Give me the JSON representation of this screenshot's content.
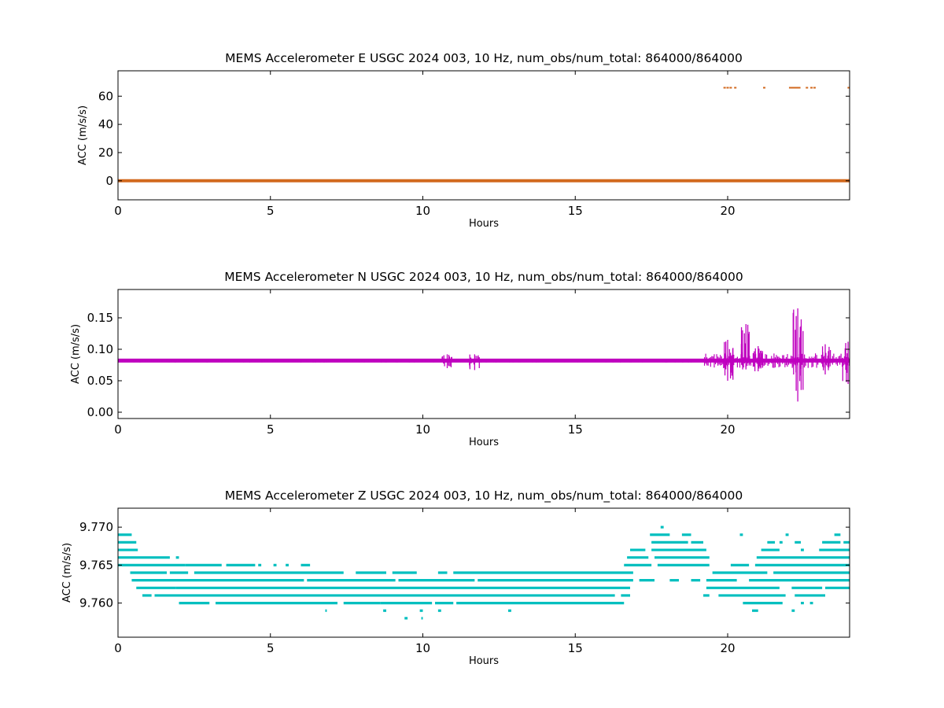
{
  "chart_data": [
    {
      "type": "scatter",
      "title": "MEMS Accelerometer E USGC 2024 003, 10 Hz, num_obs/num_total: 864000/864000",
      "xlabel": "Hours",
      "ylabel": "ACC (m/s/s)",
      "xlim": [
        0,
        24
      ],
      "ylim": [
        -13.5,
        78
      ],
      "xticks": [
        0,
        5,
        10,
        15,
        20
      ],
      "yticks": [
        0,
        20,
        40,
        60
      ],
      "color": "#d2691e",
      "series": [
        {
          "baseline": {
            "x": [
              0,
              24
            ],
            "y": 0.0
          },
          "points": [
            {
              "x": 19.9,
              "y": 66
            },
            {
              "x": 20.0,
              "y": 66
            },
            {
              "x": 20.1,
              "y": 66
            },
            {
              "x": 20.25,
              "y": 66
            },
            {
              "x": 21.2,
              "y": 66
            },
            {
              "x": 22.05,
              "y": 66
            },
            {
              "x": 22.1,
              "y": 66
            },
            {
              "x": 22.15,
              "y": 66
            },
            {
              "x": 22.2,
              "y": 66
            },
            {
              "x": 22.25,
              "y": 66
            },
            {
              "x": 22.3,
              "y": 66
            },
            {
              "x": 22.35,
              "y": 66
            },
            {
              "x": 22.6,
              "y": 66
            },
            {
              "x": 22.75,
              "y": 66
            },
            {
              "x": 22.85,
              "y": 66
            },
            {
              "x": 23.97,
              "y": 66
            }
          ]
        }
      ]
    },
    {
      "type": "scatter",
      "title": "MEMS Accelerometer N USGC 2024 003, 10 Hz, num_obs/num_total: 864000/864000",
      "xlabel": "Hours",
      "ylabel": "ACC (m/s/s)",
      "xlim": [
        0,
        24
      ],
      "ylim": [
        -0.01,
        0.195
      ],
      "xticks": [
        0,
        5,
        10,
        15,
        20
      ],
      "yticks": [
        0.0,
        0.05,
        0.1,
        0.15
      ],
      "ytick_labels": [
        "0.00",
        "0.05",
        "0.10",
        "0.15"
      ],
      "color": "#bf00bf",
      "series": [
        {
          "baseline": {
            "x": [
              0,
              24
            ],
            "y": 0.082
          },
          "noise_bursts": [
            {
              "x": 10.8,
              "y_min": 0.07,
              "y_max": 0.092
            },
            {
              "x": 11.7,
              "y_min": 0.067,
              "y_max": 0.092
            },
            {
              "x": 20.0,
              "y_min": 0.05,
              "y_max": 0.115
            },
            {
              "x": 20.6,
              "y_min": 0.068,
              "y_max": 0.14
            },
            {
              "x": 21.0,
              "y_min": 0.065,
              "y_max": 0.105
            },
            {
              "x": 22.3,
              "y_min": 0.017,
              "y_max": 0.165
            },
            {
              "x": 23.2,
              "y_min": 0.06,
              "y_max": 0.108
            },
            {
              "x": 23.95,
              "y_min": 0.045,
              "y_max": 0.112
            }
          ]
        }
      ]
    },
    {
      "type": "scatter",
      "title": "MEMS Accelerometer Z USGC 2024 003, 10 Hz, num_obs/num_total: 864000/864000",
      "xlabel": "Hours",
      "ylabel": "ACC (m/s/s)",
      "xlim": [
        0,
        24
      ],
      "ylim": [
        9.7555,
        9.7725
      ],
      "xticks": [
        0,
        5,
        10,
        15,
        20
      ],
      "yticks": [
        9.76,
        9.765,
        9.77
      ],
      "ytick_labels": [
        "9.760",
        "9.765",
        "9.770"
      ],
      "color": "#00bfbf",
      "series": [
        {
          "levels": [
            {
              "y": 9.77,
              "segments": [
                [
                  17.8,
                  17.9
                ]
              ]
            },
            {
              "y": 9.769,
              "segments": [
                [
                  0.0,
                  0.45
                ],
                [
                  17.45,
                  18.1
                ],
                [
                  18.5,
                  18.8
                ],
                [
                  20.4,
                  20.5
                ],
                [
                  21.9,
                  22.0
                ],
                [
                  23.5,
                  23.7
                ]
              ]
            },
            {
              "y": 9.768,
              "segments": [
                [
                  0.0,
                  0.6
                ],
                [
                  17.5,
                  18.7
                ],
                [
                  18.8,
                  19.2
                ],
                [
                  21.3,
                  21.55
                ],
                [
                  21.7,
                  21.8
                ],
                [
                  22.2,
                  22.4
                ],
                [
                  23.1,
                  23.7
                ],
                [
                  23.8,
                  24.0
                ]
              ]
            },
            {
              "y": 9.767,
              "segments": [
                [
                  0.0,
                  0.65
                ],
                [
                  16.8,
                  17.3
                ],
                [
                  17.5,
                  19.3
                ],
                [
                  21.1,
                  21.7
                ],
                [
                  22.4,
                  22.5
                ],
                [
                  23.0,
                  24.0
                ]
              ]
            },
            {
              "y": 9.766,
              "segments": [
                [
                  0.0,
                  1.7
                ],
                [
                  1.9,
                  2.0
                ],
                [
                  16.7,
                  17.4
                ],
                [
                  17.6,
                  19.4
                ],
                [
                  20.95,
                  24.0
                ]
              ]
            },
            {
              "y": 9.765,
              "segments": [
                [
                  0.0,
                  2.2
                ],
                [
                  2.2,
                  3.4
                ],
                [
                  3.55,
                  4.5
                ],
                [
                  4.6,
                  4.7
                ],
                [
                  5.1,
                  5.2
                ],
                [
                  5.5,
                  5.6
                ],
                [
                  6.0,
                  6.3
                ],
                [
                  16.6,
                  17.5
                ],
                [
                  17.7,
                  19.4
                ],
                [
                  20.1,
                  20.7
                ],
                [
                  20.9,
                  24.0
                ]
              ]
            },
            {
              "y": 9.764,
              "segments": [
                [
                  0.4,
                  1.6
                ],
                [
                  1.7,
                  2.3
                ],
                [
                  2.5,
                  3.2
                ],
                [
                  3.2,
                  7.4
                ],
                [
                  7.8,
                  8.8
                ],
                [
                  9.0,
                  9.8
                ],
                [
                  10.5,
                  10.8
                ],
                [
                  11.0,
                  16.9
                ],
                [
                  19.5,
                  21.3
                ],
                [
                  21.5,
                  24.0
                ]
              ]
            },
            {
              "y": 9.763,
              "segments": [
                [
                  0.45,
                  6.1
                ],
                [
                  6.2,
                  9.1
                ],
                [
                  9.2,
                  11.7
                ],
                [
                  11.8,
                  16.9
                ],
                [
                  17.1,
                  17.6
                ],
                [
                  18.1,
                  18.4
                ],
                [
                  18.8,
                  19.1
                ],
                [
                  19.3,
                  20.3
                ],
                [
                  20.7,
                  24.0
                ]
              ]
            },
            {
              "y": 9.762,
              "segments": [
                [
                  0.6,
                  1.9
                ],
                [
                  1.9,
                  16.8
                ],
                [
                  19.3,
                  21.7
                ],
                [
                  22.1,
                  23.1
                ],
                [
                  23.2,
                  24.0
                ]
              ]
            },
            {
              "y": 9.761,
              "segments": [
                [
                  0.8,
                  1.1
                ],
                [
                  1.2,
                  16.3
                ],
                [
                  16.5,
                  16.8
                ],
                [
                  19.2,
                  19.4
                ],
                [
                  19.7,
                  21.9
                ],
                [
                  22.2,
                  23.2
                ]
              ]
            },
            {
              "y": 9.76,
              "segments": [
                [
                  2.0,
                  3.0
                ],
                [
                  3.2,
                  7.2
                ],
                [
                  7.4,
                  8.6
                ],
                [
                  8.6,
                  10.3
                ],
                [
                  10.4,
                  11.0
                ],
                [
                  11.1,
                  16.6
                ],
                [
                  20.5,
                  21.8
                ],
                [
                  22.4,
                  22.5
                ],
                [
                  22.7,
                  22.8
                ]
              ]
            },
            {
              "y": 9.759,
              "segments": [
                [
                  6.8,
                  6.85
                ],
                [
                  8.7,
                  8.8
                ],
                [
                  9.9,
                  10.0
                ],
                [
                  10.5,
                  10.6
                ],
                [
                  12.8,
                  12.9
                ],
                [
                  20.8,
                  21.0
                ],
                [
                  22.1,
                  22.2
                ]
              ]
            },
            {
              "y": 9.758,
              "segments": [
                [
                  9.4,
                  9.5
                ],
                [
                  9.95,
                  10.0
                ]
              ]
            }
          ]
        }
      ]
    }
  ]
}
